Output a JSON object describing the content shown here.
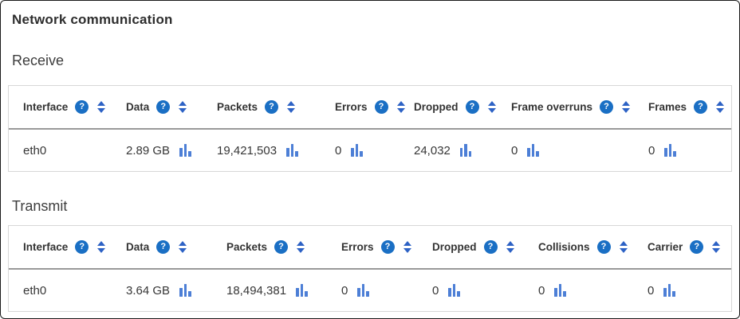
{
  "page": {
    "title": "Network communication"
  },
  "colors": {
    "help_icon_bg": "#1a6fc4",
    "sort_icon": "#2d62c5",
    "chart_bar": "#4d7fd6",
    "header_divider": "#999999",
    "table_border": "#d7d7d7",
    "text_primary": "#333333"
  },
  "icons": {
    "help": "?",
    "sort": "up-down-triangles",
    "chart": "mini-bar-chart"
  },
  "receive": {
    "heading": "Receive",
    "columns": [
      "Interface",
      "Data",
      "Packets",
      "Errors",
      "Dropped",
      "Frame overruns",
      "Frames"
    ],
    "row": [
      "eth0",
      "2.89 GB",
      "19,421,503",
      "0",
      "24,032",
      "0",
      "0"
    ]
  },
  "transmit": {
    "heading": "Transmit",
    "columns": [
      "Interface",
      "Data",
      "Packets",
      "Errors",
      "Dropped",
      "Collisions",
      "Carrier"
    ],
    "row": [
      "eth0",
      "3.64 GB",
      "18,494,381",
      "0",
      "0",
      "0",
      "0"
    ]
  }
}
